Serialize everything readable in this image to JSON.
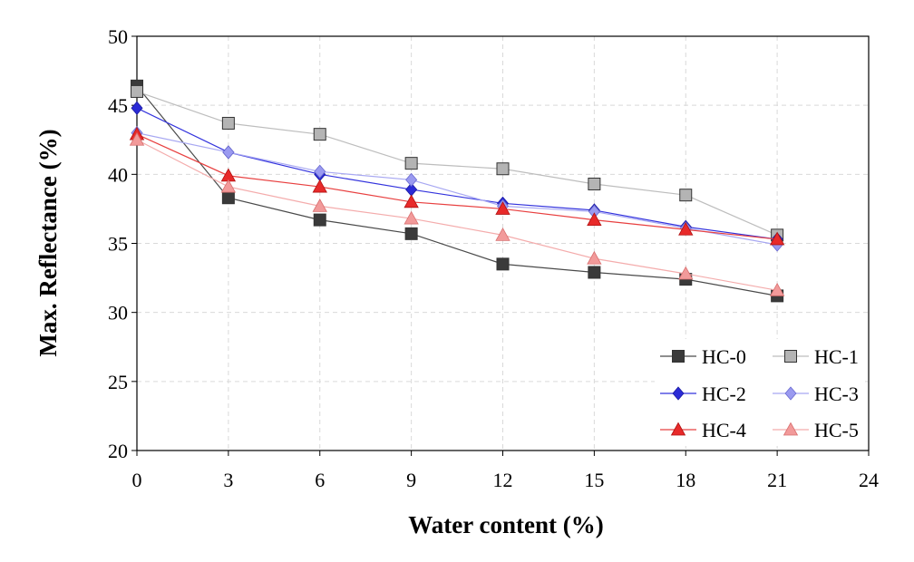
{
  "chart_data": {
    "type": "line",
    "title": "",
    "xlabel": "Water content (%)",
    "ylabel": "Max. Reflectance (%)",
    "xlim": [
      0,
      24
    ],
    "ylim": [
      20,
      50
    ],
    "xticks": [
      0,
      3,
      6,
      9,
      12,
      15,
      18,
      21,
      24
    ],
    "yticks": [
      20,
      25,
      30,
      35,
      40,
      45,
      50
    ],
    "grid": true,
    "legend_position": "bottom-right",
    "x": [
      0,
      3,
      6,
      9,
      12,
      15,
      18,
      21
    ],
    "series": [
      {
        "name": "HC-0",
        "marker": "square",
        "color": "#3a3a3a",
        "line_color": "#4a4a4a",
        "values": [
          46.4,
          38.3,
          36.7,
          35.7,
          33.5,
          32.9,
          32.4,
          31.2
        ]
      },
      {
        "name": "HC-1",
        "marker": "square",
        "color": "#b4b4b4",
        "line_color": "#bdbdbd",
        "values": [
          46.0,
          43.7,
          42.9,
          40.8,
          40.4,
          39.3,
          38.5,
          35.6
        ]
      },
      {
        "name": "HC-2",
        "marker": "diamond",
        "color": "#2b2bd6",
        "line_color": "#3333dd",
        "values": [
          44.8,
          41.6,
          40.0,
          38.9,
          37.9,
          37.4,
          36.2,
          35.3
        ]
      },
      {
        "name": "HC-3",
        "marker": "diamond",
        "color": "#9a9af0",
        "line_color": "#a8a8f2",
        "values": [
          43.0,
          41.6,
          40.2,
          39.6,
          37.7,
          37.3,
          36.1,
          34.9
        ]
      },
      {
        "name": "HC-4",
        "marker": "triangle",
        "color": "#e82a2a",
        "line_color": "#e84040",
        "values": [
          42.9,
          39.9,
          39.1,
          38.0,
          37.5,
          36.7,
          36.0,
          35.3
        ]
      },
      {
        "name": "HC-5",
        "marker": "triangle",
        "color": "#f29a9a",
        "line_color": "#f4acac",
        "values": [
          42.5,
          39.1,
          37.7,
          36.8,
          35.6,
          33.9,
          32.8,
          31.6
        ]
      }
    ]
  }
}
